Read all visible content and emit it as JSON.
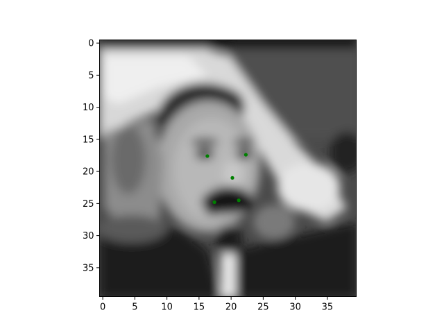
{
  "chart_data": {
    "type": "scatter",
    "title": "",
    "xlabel": "",
    "ylabel": "",
    "image_size": [
      40,
      40
    ],
    "xlim": [
      -0.5,
      39.5
    ],
    "ylim": [
      39.5,
      -0.5
    ],
    "y_inverted": true,
    "grid": false,
    "colormap": "gray",
    "x_ticks": [
      0,
      5,
      10,
      15,
      20,
      25,
      30,
      35
    ],
    "x_tick_labels": [
      "0",
      "5",
      "10",
      "15",
      "20",
      "25",
      "30",
      "35"
    ],
    "y_ticks": [
      0,
      5,
      10,
      15,
      20,
      25,
      30,
      35
    ],
    "y_tick_labels": [
      "0",
      "5",
      "10",
      "15",
      "20",
      "25",
      "30",
      "35"
    ],
    "marker_color": "#008000",
    "series": [
      {
        "points": [
          {
            "x": 16.3,
            "y": 17.6
          },
          {
            "x": 22.3,
            "y": 17.4
          },
          {
            "x": 20.2,
            "y": 21.0
          },
          {
            "x": 17.4,
            "y": 24.8
          },
          {
            "x": 21.2,
            "y": 24.5
          }
        ]
      }
    ]
  }
}
